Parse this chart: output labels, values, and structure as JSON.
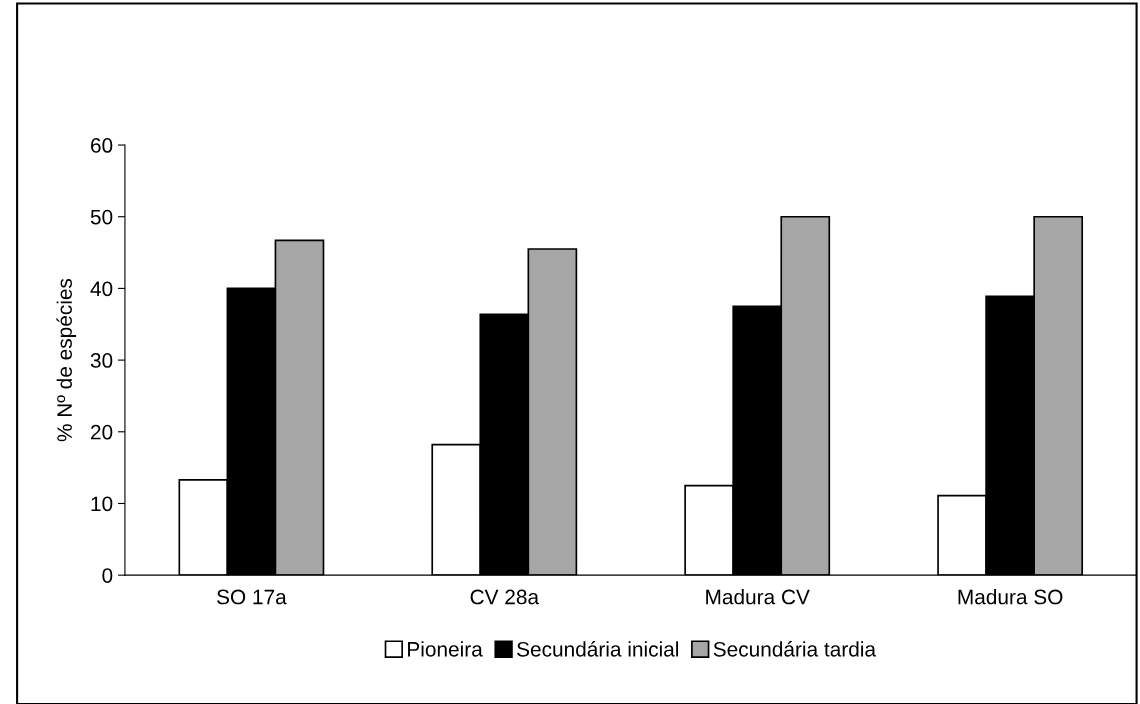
{
  "chart_data": {
    "type": "bar",
    "ylabel": "% Nº de espécies",
    "categories": [
      "SO 17a",
      "CV 28a",
      "Madura CV",
      "Madura SO"
    ],
    "series": [
      {
        "name": "Pioneira",
        "color": "#ffffff",
        "values": [
          13.3,
          18.2,
          12.5,
          11.1
        ]
      },
      {
        "name": "Secundária inicial",
        "color": "#000000",
        "values": [
          40.0,
          36.4,
          37.5,
          38.9
        ]
      },
      {
        "name": "Secundária tardia",
        "color": "#a6a6a6",
        "values": [
          46.7,
          45.5,
          50.0,
          50.0
        ]
      }
    ],
    "ylim": [
      0,
      60
    ],
    "yticks": [
      0,
      10,
      20,
      30,
      40,
      50,
      60
    ],
    "grid": false,
    "legend": "bottom"
  }
}
